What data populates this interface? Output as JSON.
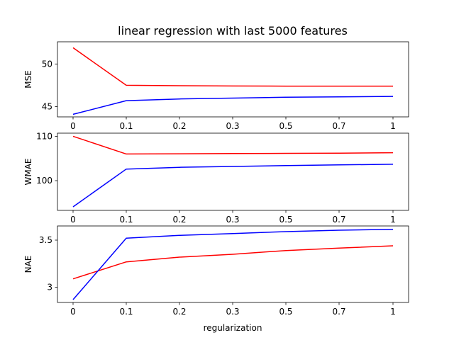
{
  "figure": {
    "title": "linear regression with last 5000 features",
    "xlabel": "regularization"
  },
  "chart_data": [
    {
      "type": "line",
      "ylabel": "MSE",
      "categories": [
        "0",
        "0.1",
        "0.2",
        "0.3",
        "0.5",
        "0.7",
        "1"
      ],
      "ylim": [
        43.8,
        52.6
      ],
      "yticks": [
        45,
        50
      ],
      "series": [
        {
          "color": "#ff0000",
          "values": [
            51.9,
            47.5,
            47.45,
            47.42,
            47.4,
            47.4,
            47.4
          ]
        },
        {
          "color": "#0000ff",
          "values": [
            44.1,
            45.7,
            45.9,
            46.0,
            46.1,
            46.15,
            46.2
          ]
        }
      ]
    },
    {
      "type": "line",
      "ylabel": "WMAE",
      "categories": [
        "0",
        "0.1",
        "0.2",
        "0.3",
        "0.5",
        "0.7",
        "1"
      ],
      "ylim": [
        93.3,
        110.7
      ],
      "yticks": [
        100,
        110
      ],
      "series": [
        {
          "color": "#ff0000",
          "values": [
            110.0,
            106.0,
            106.05,
            106.1,
            106.15,
            106.2,
            106.3
          ]
        },
        {
          "color": "#0000ff",
          "values": [
            94.1,
            102.6,
            103.0,
            103.2,
            103.4,
            103.55,
            103.7
          ]
        }
      ]
    },
    {
      "type": "line",
      "ylabel": "NAE",
      "categories": [
        "0",
        "0.1",
        "0.2",
        "0.3",
        "0.5",
        "0.7",
        "1"
      ],
      "ylim": [
        2.84,
        3.65
      ],
      "yticks": [
        3.0,
        3.5
      ],
      "series": [
        {
          "color": "#ff0000",
          "values": [
            3.09,
            3.27,
            3.32,
            3.35,
            3.39,
            3.415,
            3.44
          ]
        },
        {
          "color": "#0000ff",
          "values": [
            2.87,
            3.52,
            3.55,
            3.57,
            3.59,
            3.605,
            3.615
          ]
        }
      ]
    }
  ]
}
